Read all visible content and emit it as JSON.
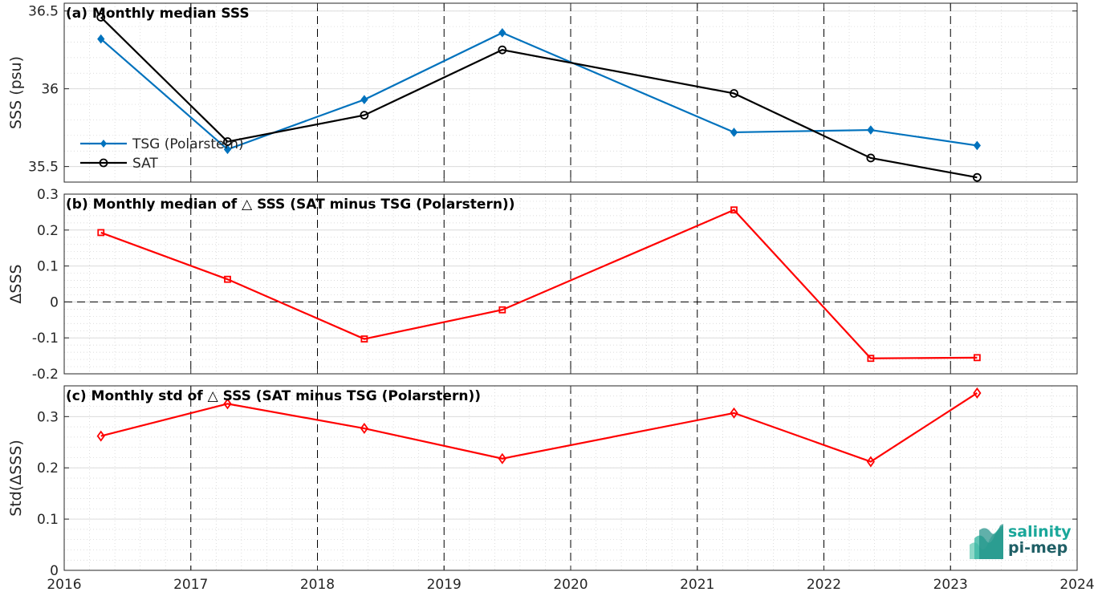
{
  "chart_data": [
    {
      "type": "line",
      "title": "(a) Monthly median SSS",
      "ylabel": "SSS (psu)",
      "xlim": [
        2016,
        2024
      ],
      "ylim": [
        35.4,
        36.55
      ],
      "xticks": [
        2016,
        2017,
        2018,
        2019,
        2020,
        2021,
        2022,
        2023,
        2024
      ],
      "yticks": [
        35.5,
        36,
        36.5
      ],
      "ytick_labels": [
        "35.5",
        "36",
        "36.5"
      ],
      "show_xtick_labels": false,
      "grid": true,
      "legend_position": "left",
      "series": [
        {
          "name": "TSG (Polarstern)",
          "color": "#0072bd",
          "marker": "diamond-filled",
          "x": [
            2016.29,
            2017.29,
            2018.37,
            2019.46,
            2021.29,
            2022.37,
            2023.21
          ],
          "y": [
            36.32,
            35.61,
            35.93,
            36.36,
            35.72,
            35.735,
            35.635
          ]
        },
        {
          "name": "SAT",
          "color": "#000000",
          "marker": "circle-open",
          "x": [
            2016.29,
            2017.29,
            2018.37,
            2019.46,
            2021.29,
            2022.37,
            2023.21
          ],
          "y": [
            36.46,
            35.66,
            35.83,
            36.25,
            35.97,
            35.555,
            35.43
          ]
        }
      ]
    },
    {
      "type": "line",
      "title": "(b) Monthly median of △ SSS (SAT minus TSG (Polarstern))",
      "ylabel": "ΔSSS",
      "xlim": [
        2016,
        2024
      ],
      "ylim": [
        -0.2,
        0.3
      ],
      "xticks": [
        2016,
        2017,
        2018,
        2019,
        2020,
        2021,
        2022,
        2023,
        2024
      ],
      "yticks": [
        -0.2,
        -0.1,
        0,
        0.1,
        0.2,
        0.3
      ],
      "ytick_labels": [
        "-0.2",
        "-0.1",
        "0",
        "0.1",
        "0.2",
        "0.3"
      ],
      "show_xtick_labels": false,
      "zero_line": true,
      "grid": true,
      "series": [
        {
          "color": "#ff0000",
          "marker": "square-open",
          "x": [
            2016.29,
            2017.29,
            2018.37,
            2019.46,
            2021.29,
            2022.37,
            2023.21
          ],
          "y": [
            0.193,
            0.063,
            -0.103,
            -0.022,
            0.256,
            -0.157,
            -0.155
          ]
        }
      ]
    },
    {
      "type": "line",
      "title": "(c) Monthly std of △ SSS (SAT minus TSG (Polarstern))",
      "ylabel": "Std(ΔSSS)",
      "xlim": [
        2016,
        2024
      ],
      "ylim": [
        0,
        0.36
      ],
      "xticks": [
        2016,
        2017,
        2018,
        2019,
        2020,
        2021,
        2022,
        2023,
        2024
      ],
      "yticks": [
        0,
        0.1,
        0.2,
        0.3
      ],
      "ytick_labels": [
        "0",
        "0.1",
        "0.2",
        "0.3"
      ],
      "xtick_labels": [
        "2016",
        "2017",
        "2018",
        "2019",
        "2020",
        "2021",
        "2022",
        "2023",
        "2024"
      ],
      "show_xtick_labels": true,
      "grid": true,
      "series": [
        {
          "color": "#ff0000",
          "marker": "diamond-open",
          "x": [
            2016.29,
            2017.29,
            2018.37,
            2019.46,
            2021.29,
            2022.37,
            2023.21
          ],
          "y": [
            0.262,
            0.325,
            0.277,
            0.218,
            0.307,
            0.212,
            0.346
          ]
        }
      ]
    }
  ],
  "logo": {
    "line1": "salinity",
    "line2": "pi-mep"
  }
}
